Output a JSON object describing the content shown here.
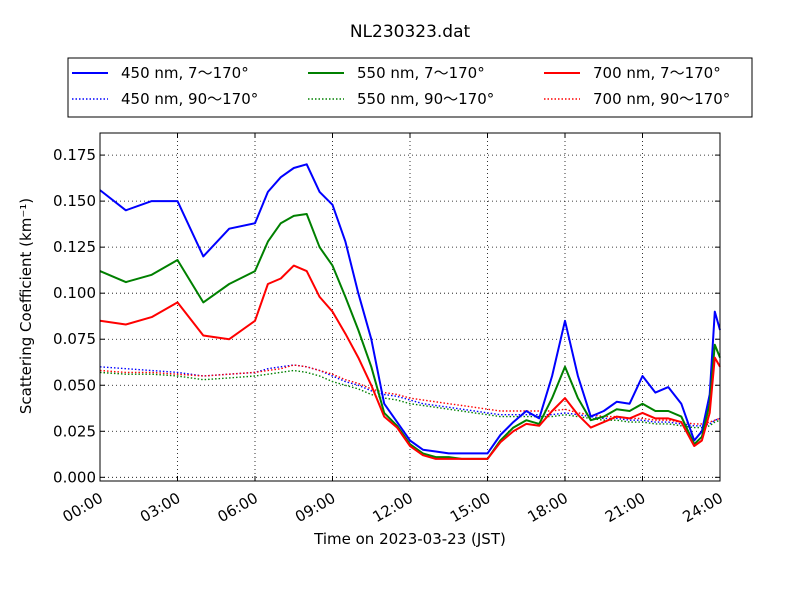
{
  "chart_data": {
    "type": "line",
    "title": "NL230323.dat",
    "xlabel": "Time on 2023-03-23 (JST)",
    "ylabel": "Scattering Coefficient (km⁻¹)",
    "x_unit": "hours",
    "xlim": [
      0,
      24
    ],
    "ylim": [
      -0.002,
      0.187
    ],
    "grid": true,
    "legend_position": "above plot, 3 columns",
    "x_ticks": [
      {
        "v": 0,
        "label": "00:00"
      },
      {
        "v": 3,
        "label": "03:00"
      },
      {
        "v": 6,
        "label": "06:00"
      },
      {
        "v": 9,
        "label": "09:00"
      },
      {
        "v": 12,
        "label": "12:00"
      },
      {
        "v": 15,
        "label": "15:00"
      },
      {
        "v": 18,
        "label": "18:00"
      },
      {
        "v": 21,
        "label": "21:00"
      },
      {
        "v": 24,
        "label": "24:00"
      }
    ],
    "y_ticks": [
      {
        "v": 0.0,
        "label": "0.000"
      },
      {
        "v": 0.025,
        "label": "0.025"
      },
      {
        "v": 0.05,
        "label": "0.050"
      },
      {
        "v": 0.075,
        "label": "0.075"
      },
      {
        "v": 0.1,
        "label": "0.100"
      },
      {
        "v": 0.125,
        "label": "0.125"
      },
      {
        "v": 0.15,
        "label": "0.150"
      },
      {
        "v": 0.175,
        "label": "0.175"
      }
    ],
    "x": [
      0,
      1,
      2,
      3,
      4,
      5,
      6,
      6.5,
      7,
      7.5,
      8,
      8.5,
      9,
      9.5,
      10,
      10.5,
      11,
      11.5,
      12,
      12.5,
      13,
      13.5,
      14,
      14.5,
      15,
      15.5,
      16,
      16.5,
      17,
      17.5,
      18,
      18.5,
      19,
      19.5,
      20,
      20.5,
      21,
      21.5,
      22,
      22.5,
      23,
      23.3,
      23.6,
      23.8,
      24
    ],
    "series": [
      {
        "name": "450 nm, 7～170°",
        "color": "#0000ff",
        "style": "solid",
        "values": [
          0.156,
          0.145,
          0.15,
          0.15,
          0.12,
          0.135,
          0.138,
          0.155,
          0.163,
          0.168,
          0.17,
          0.155,
          0.148,
          0.128,
          0.1,
          0.075,
          0.04,
          0.03,
          0.02,
          0.015,
          0.014,
          0.013,
          0.013,
          0.013,
          0.013,
          0.023,
          0.03,
          0.036,
          0.032,
          0.055,
          0.085,
          0.055,
          0.033,
          0.036,
          0.041,
          0.04,
          0.055,
          0.046,
          0.049,
          0.04,
          0.02,
          0.025,
          0.045,
          0.09,
          0.08
        ]
      },
      {
        "name": "450 nm, 90～170°",
        "color": "#0000ff",
        "style": "dotted",
        "values": [
          0.06,
          0.059,
          0.058,
          0.057,
          0.055,
          0.056,
          0.057,
          0.059,
          0.06,
          0.061,
          0.06,
          0.058,
          0.055,
          0.052,
          0.05,
          0.047,
          0.045,
          0.044,
          0.042,
          0.04,
          0.039,
          0.038,
          0.037,
          0.036,
          0.035,
          0.034,
          0.034,
          0.034,
          0.034,
          0.034,
          0.035,
          0.034,
          0.033,
          0.032,
          0.032,
          0.031,
          0.031,
          0.03,
          0.03,
          0.029,
          0.028,
          0.028,
          0.029,
          0.031,
          0.032
        ]
      },
      {
        "name": "550 nm, 7～170°",
        "color": "#008000",
        "style": "solid",
        "values": [
          0.112,
          0.106,
          0.11,
          0.118,
          0.095,
          0.105,
          0.112,
          0.128,
          0.138,
          0.142,
          0.143,
          0.125,
          0.115,
          0.098,
          0.08,
          0.06,
          0.035,
          0.028,
          0.018,
          0.013,
          0.011,
          0.011,
          0.01,
          0.01,
          0.01,
          0.02,
          0.027,
          0.031,
          0.029,
          0.043,
          0.06,
          0.043,
          0.031,
          0.033,
          0.037,
          0.036,
          0.04,
          0.036,
          0.036,
          0.033,
          0.018,
          0.022,
          0.04,
          0.072,
          0.065
        ]
      },
      {
        "name": "550 nm, 90～170°",
        "color": "#008000",
        "style": "dotted",
        "values": [
          0.057,
          0.056,
          0.056,
          0.055,
          0.053,
          0.054,
          0.055,
          0.056,
          0.057,
          0.058,
          0.057,
          0.055,
          0.052,
          0.05,
          0.048,
          0.045,
          0.043,
          0.042,
          0.04,
          0.039,
          0.038,
          0.037,
          0.036,
          0.035,
          0.034,
          0.033,
          0.033,
          0.033,
          0.033,
          0.033,
          0.034,
          0.033,
          0.032,
          0.031,
          0.031,
          0.03,
          0.03,
          0.029,
          0.029,
          0.028,
          0.027,
          0.027,
          0.028,
          0.03,
          0.031
        ]
      },
      {
        "name": "700 nm, 7～170°",
        "color": "#ff0000",
        "style": "solid",
        "values": [
          0.085,
          0.083,
          0.087,
          0.095,
          0.077,
          0.075,
          0.085,
          0.105,
          0.108,
          0.115,
          0.112,
          0.098,
          0.09,
          0.078,
          0.065,
          0.05,
          0.033,
          0.027,
          0.017,
          0.012,
          0.01,
          0.01,
          0.01,
          0.01,
          0.01,
          0.019,
          0.025,
          0.029,
          0.028,
          0.036,
          0.043,
          0.034,
          0.027,
          0.03,
          0.033,
          0.032,
          0.035,
          0.032,
          0.032,
          0.03,
          0.017,
          0.02,
          0.035,
          0.065,
          0.06
        ]
      },
      {
        "name": "700 nm, 90～170°",
        "color": "#ff0000",
        "style": "dotted",
        "values": [
          0.058,
          0.057,
          0.057,
          0.056,
          0.055,
          0.056,
          0.057,
          0.058,
          0.059,
          0.061,
          0.06,
          0.058,
          0.056,
          0.053,
          0.051,
          0.048,
          0.046,
          0.045,
          0.043,
          0.042,
          0.041,
          0.04,
          0.039,
          0.038,
          0.037,
          0.036,
          0.036,
          0.036,
          0.036,
          0.036,
          0.037,
          0.035,
          0.034,
          0.033,
          0.033,
          0.032,
          0.032,
          0.031,
          0.031,
          0.03,
          0.029,
          0.029,
          0.03,
          0.031,
          0.032
        ]
      }
    ]
  }
}
